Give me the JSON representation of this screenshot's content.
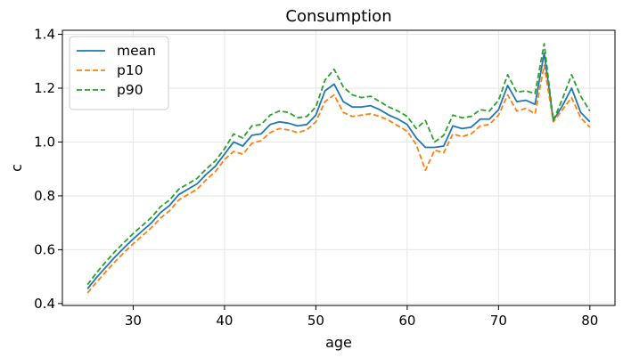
{
  "chart_data": {
    "type": "line",
    "title": "Consumption",
    "xlabel": "age",
    "ylabel": "c",
    "xlim": [
      22.25,
      82.75
    ],
    "ylim": [
      0.393,
      1.415
    ],
    "xticks": [
      30,
      40,
      50,
      60,
      70,
      80
    ],
    "yticks": [
      0.4,
      0.6,
      0.8,
      1.0,
      1.2,
      1.4
    ],
    "grid": true,
    "legend_position": "top-left",
    "x": [
      25,
      26,
      27,
      28,
      29,
      30,
      31,
      32,
      33,
      34,
      35,
      36,
      37,
      38,
      39,
      40,
      41,
      42,
      43,
      44,
      45,
      46,
      47,
      48,
      49,
      50,
      51,
      52,
      53,
      54,
      55,
      56,
      57,
      58,
      59,
      60,
      61,
      62,
      63,
      64,
      65,
      66,
      67,
      68,
      69,
      70,
      71,
      72,
      73,
      74,
      75,
      76,
      77,
      78,
      79,
      80
    ],
    "series": [
      {
        "name": "mean",
        "color": "#1f77b4",
        "dash": "solid",
        "values": [
          0.455,
          0.497,
          0.535,
          0.573,
          0.607,
          0.64,
          0.67,
          0.7,
          0.738,
          0.765,
          0.805,
          0.825,
          0.845,
          0.88,
          0.91,
          0.955,
          1.0,
          0.985,
          1.025,
          1.03,
          1.065,
          1.075,
          1.07,
          1.06,
          1.065,
          1.1,
          1.19,
          1.215,
          1.15,
          1.13,
          1.13,
          1.135,
          1.12,
          1.1,
          1.085,
          1.065,
          1.015,
          0.98,
          0.98,
          0.985,
          1.06,
          1.05,
          1.055,
          1.085,
          1.085,
          1.12,
          1.21,
          1.15,
          1.155,
          1.14,
          1.33,
          1.08,
          1.135,
          1.2,
          1.11,
          1.075
        ]
      },
      {
        "name": "p10",
        "color": "#ff7f0e",
        "dash": "dashed",
        "values": [
          0.44,
          0.48,
          0.518,
          0.555,
          0.59,
          0.622,
          0.652,
          0.682,
          0.718,
          0.745,
          0.785,
          0.805,
          0.825,
          0.86,
          0.89,
          0.935,
          0.965,
          0.955,
          0.995,
          1.005,
          1.035,
          1.05,
          1.045,
          1.035,
          1.045,
          1.075,
          1.15,
          1.175,
          1.11,
          1.095,
          1.1,
          1.105,
          1.095,
          1.08,
          1.06,
          1.04,
          0.99,
          0.895,
          0.97,
          0.96,
          1.03,
          1.02,
          1.03,
          1.06,
          1.065,
          1.1,
          1.175,
          1.115,
          1.125,
          1.105,
          1.285,
          1.075,
          1.12,
          1.165,
          1.09,
          1.055
        ]
      },
      {
        "name": "p90",
        "color": "#2ca02c",
        "dash": "dashed",
        "values": [
          0.47,
          0.515,
          0.555,
          0.593,
          0.627,
          0.66,
          0.69,
          0.72,
          0.76,
          0.785,
          0.825,
          0.845,
          0.865,
          0.9,
          0.93,
          0.975,
          1.03,
          1.015,
          1.06,
          1.065,
          1.1,
          1.115,
          1.11,
          1.09,
          1.095,
          1.13,
          1.23,
          1.27,
          1.205,
          1.175,
          1.165,
          1.17,
          1.15,
          1.13,
          1.115,
          1.095,
          1.05,
          1.08,
          1.0,
          1.025,
          1.1,
          1.09,
          1.095,
          1.12,
          1.115,
          1.155,
          1.25,
          1.185,
          1.19,
          1.18,
          1.365,
          1.08,
          1.16,
          1.25,
          1.17,
          1.115
        ]
      }
    ]
  }
}
